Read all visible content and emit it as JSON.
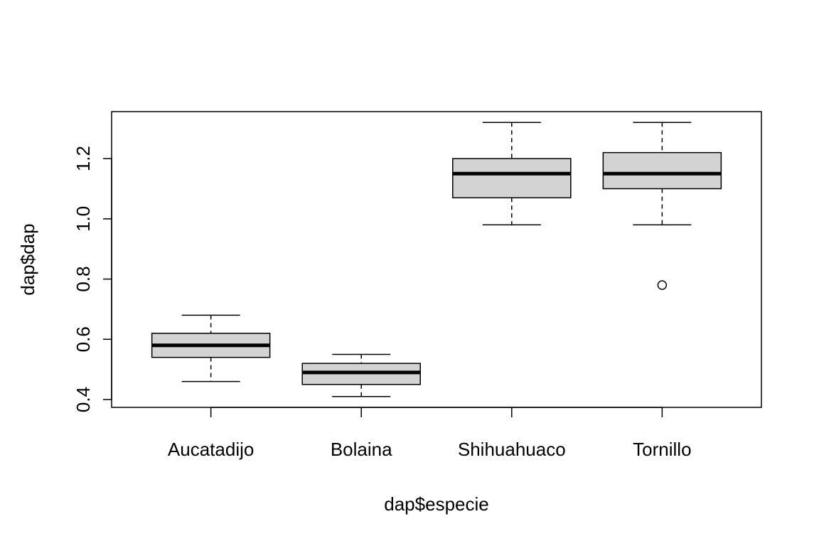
{
  "chart_data": {
    "type": "boxplot",
    "title": "",
    "xlabel": "dap$especie",
    "ylabel": "dap$dap",
    "ylim": [
      0.374,
      1.356
    ],
    "yticks": [
      0.4,
      0.6,
      0.8,
      1.0,
      1.2
    ],
    "ytick_labels": [
      "0.4",
      "0.6",
      "0.8",
      "1.0",
      "1.2"
    ],
    "categories": [
      "Aucatadijo",
      "Bolaina",
      "Shihuahuaco",
      "Tornillo"
    ],
    "boxes": [
      {
        "name": "Aucatadijo",
        "whisker_low": 0.46,
        "q1": 0.54,
        "median": 0.58,
        "q3": 0.62,
        "whisker_high": 0.68,
        "outliers": []
      },
      {
        "name": "Bolaina",
        "whisker_low": 0.41,
        "q1": 0.45,
        "median": 0.49,
        "q3": 0.52,
        "whisker_high": 0.55,
        "outliers": []
      },
      {
        "name": "Shihuahuaco",
        "whisker_low": 0.98,
        "q1": 1.07,
        "median": 1.15,
        "q3": 1.2,
        "whisker_high": 1.32,
        "outliers": []
      },
      {
        "name": "Tornillo",
        "whisker_low": 0.98,
        "q1": 1.1,
        "median": 1.15,
        "q3": 1.22,
        "whisker_high": 1.32,
        "outliers": [
          0.78
        ]
      }
    ],
    "box_fill": "#d3d3d3",
    "grid": false
  }
}
